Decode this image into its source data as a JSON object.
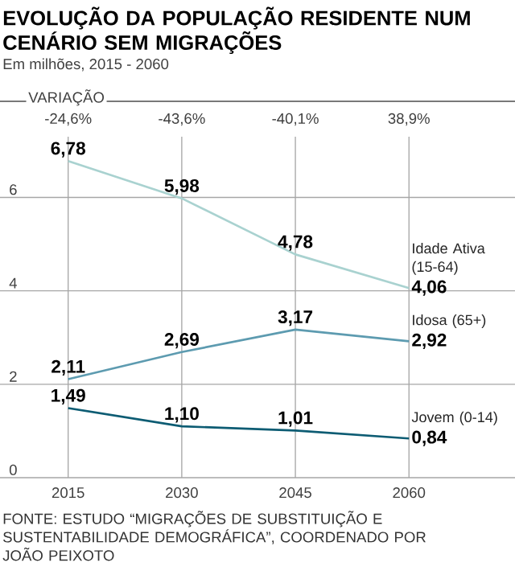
{
  "chart_data": {
    "type": "line",
    "title": "EVOLUÇÃO DA POPULAÇÃO RESIDENTE NUM CENÁRIO SEM MIGRAÇÕES",
    "subtitle": "Em milhões, 2015 - 2060",
    "x": [
      2015,
      2030,
      2045,
      2060
    ],
    "series": [
      {
        "name": "Idade Ativa (15-64)",
        "color": "#a9d2d0",
        "values": [
          6.78,
          5.98,
          4.78,
          4.06
        ],
        "value_labels": [
          "6,78",
          "5,98",
          "4,78",
          "4,06"
        ]
      },
      {
        "name": "Idosa (65+)",
        "color": "#5d9bb0",
        "values": [
          2.11,
          2.69,
          3.17,
          2.92
        ],
        "value_labels": [
          "2,11",
          "2,69",
          "3,17",
          "2,92"
        ]
      },
      {
        "name": "Jovem (0-14)",
        "color": "#0d5c73",
        "values": [
          1.49,
          1.1,
          1.01,
          0.84
        ],
        "value_labels": [
          "1,49",
          "1,10",
          "1,01",
          "0,84"
        ]
      }
    ],
    "xlim": [
      2006,
      2074
    ],
    "ylim": [
      0,
      7.3
    ],
    "xticks": [
      2015,
      2030,
      2045,
      2060
    ],
    "yticks": [
      0,
      2,
      4,
      6
    ],
    "grid": true,
    "annotations": [
      "VARIAÇÃO",
      "-24,6%",
      "-43,6%",
      "-40,1%",
      "38,9%",
      "FONTE: ESTUDO “MIGRAÇÕES DE SUBSTITUIÇÃO E SUSTENTABILIDADE DEMOGRÁFICA”, COORDENADO POR JOÃO PEIXOTO"
    ]
  }
}
